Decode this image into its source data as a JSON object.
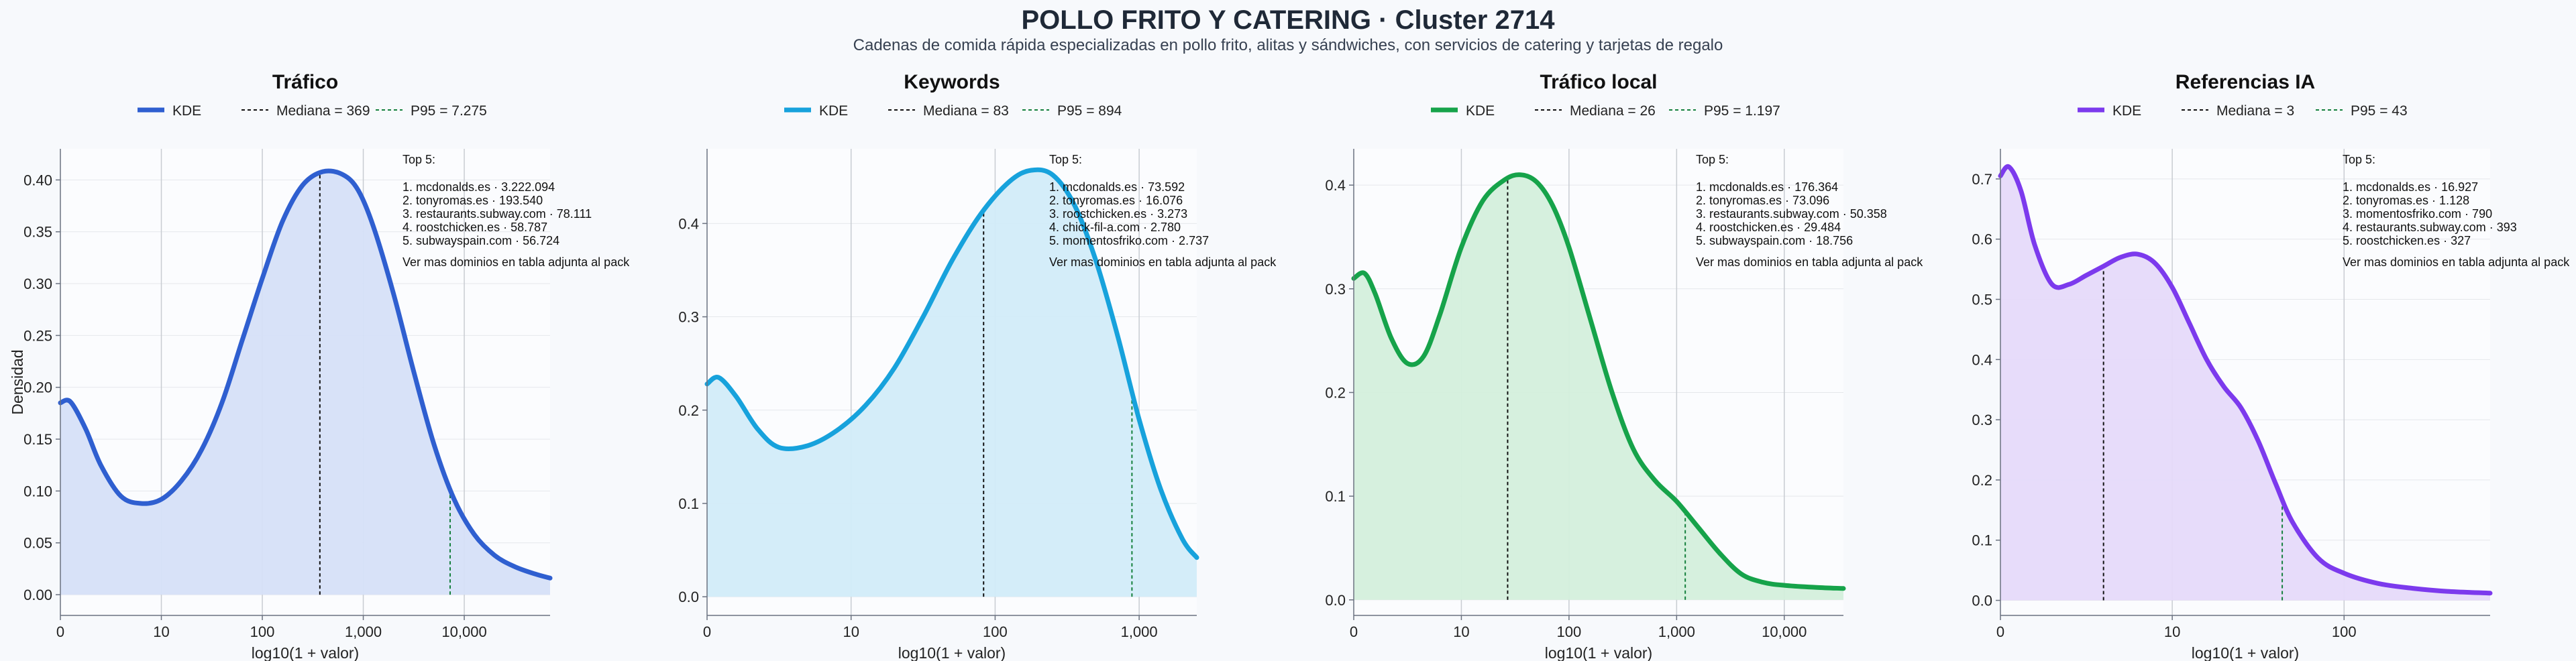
{
  "title": "POLLO FRITO Y CATERING · Cluster 2714",
  "subtitle": "Cadenas de comida rápida especializadas en pollo frito, alitas y sándwiches, con servicios de catering y tarjetas de regalo",
  "chart_data": [
    {
      "type": "area",
      "title": "Tráfico",
      "xlabel": "log10(1 + valor)",
      "ylabel": "Densidad",
      "color": "#2f5fd0",
      "fill": "#d6e0f8",
      "xlim": [
        0,
        4.85
      ],
      "ylim": [
        -0.02,
        0.43
      ],
      "x_ticks": [
        0,
        1,
        2,
        3,
        4
      ],
      "x_tick_labels": [
        "0",
        "10",
        "100",
        "1,000",
        "10,000"
      ],
      "y_ticks": [
        0.0,
        0.05,
        0.1,
        0.15,
        0.2,
        0.25,
        0.3,
        0.35,
        0.4
      ],
      "y_tick_labels": [
        "0.00",
        "0.05",
        "0.10",
        "0.15",
        "0.20",
        "0.25",
        "0.30",
        "0.35",
        "0.40"
      ],
      "legend": [
        "KDE",
        "Mediana = 369",
        "P95 = 7.275"
      ],
      "median_x": 2.57,
      "p95_x": 3.86,
      "x": [
        0,
        0.1,
        0.25,
        0.4,
        0.6,
        0.8,
        1.0,
        1.2,
        1.4,
        1.6,
        1.8,
        2.0,
        2.2,
        2.4,
        2.6,
        2.8,
        2.95,
        3.1,
        3.3,
        3.5,
        3.7,
        3.9,
        4.1,
        4.3,
        4.5,
        4.7,
        4.85
      ],
      "y": [
        0.185,
        0.186,
        0.16,
        0.125,
        0.095,
        0.088,
        0.092,
        0.11,
        0.14,
        0.185,
        0.245,
        0.305,
        0.36,
        0.395,
        0.408,
        0.405,
        0.39,
        0.355,
        0.29,
        0.215,
        0.145,
        0.092,
        0.058,
        0.038,
        0.027,
        0.02,
        0.016
      ],
      "top5_title": "Top 5:",
      "top5": [
        "1. mcdonalds.es · 3.222.094",
        "2. tonyromas.es · 193.540",
        "3. restaurants.subway.com · 78.111",
        "4. roostchicken.es · 58.787",
        "5. subwayspain.com · 56.724"
      ],
      "note": "Ver mas dominios en tabla adjunta al pack"
    },
    {
      "type": "area",
      "title": "Keywords",
      "xlabel": "log10(1 + valor)",
      "ylabel": "",
      "color": "#17a2dc",
      "fill": "#d2ecf9",
      "xlim": [
        0,
        3.4
      ],
      "ylim": [
        -0.02,
        0.48
      ],
      "x_ticks": [
        0,
        1,
        2,
        3
      ],
      "x_tick_labels": [
        "0",
        "10",
        "100",
        "1,000"
      ],
      "y_ticks": [
        0.0,
        0.1,
        0.2,
        0.3,
        0.4
      ],
      "y_tick_labels": [
        "0.0",
        "0.1",
        "0.2",
        "0.3",
        "0.4"
      ],
      "legend": [
        "KDE",
        "Mediana = 83",
        "P95 = 894"
      ],
      "median_x": 1.92,
      "p95_x": 2.95,
      "x": [
        0,
        0.08,
        0.2,
        0.35,
        0.5,
        0.7,
        0.9,
        1.1,
        1.3,
        1.5,
        1.7,
        1.9,
        2.1,
        2.25,
        2.4,
        2.55,
        2.7,
        2.85,
        3.0,
        3.15,
        3.3,
        3.4
      ],
      "y": [
        0.228,
        0.235,
        0.215,
        0.18,
        0.16,
        0.162,
        0.178,
        0.205,
        0.245,
        0.3,
        0.36,
        0.41,
        0.445,
        0.457,
        0.452,
        0.42,
        0.36,
        0.28,
        0.19,
        0.115,
        0.062,
        0.042
      ],
      "top5_title": "Top 5:",
      "top5": [
        "1. mcdonalds.es · 73.592",
        "2. tonyromas.es · 16.076",
        "3. roostchicken.es · 3.273",
        "4. chick-fil-a.com · 2.780",
        "5. momentosfriko.com · 2.737"
      ],
      "note": "Ver mas dominios en tabla adjunta al pack"
    },
    {
      "type": "area",
      "title": "Tráfico local",
      "xlabel": "log10(1 + valor)",
      "ylabel": "",
      "color": "#16a34a",
      "fill": "#d4efdc",
      "xlim": [
        0,
        4.55
      ],
      "ylim": [
        -0.015,
        0.435
      ],
      "x_ticks": [
        0,
        1,
        2,
        3,
        4
      ],
      "x_tick_labels": [
        "0",
        "10",
        "100",
        "1,000",
        "10,000"
      ],
      "y_ticks": [
        0.0,
        0.1,
        0.2,
        0.3,
        0.4
      ],
      "y_tick_labels": [
        "0.0",
        "0.1",
        "0.2",
        "0.3",
        "0.4"
      ],
      "legend": [
        "KDE",
        "Mediana = 26",
        "P95 = 1.197"
      ],
      "median_x": 1.43,
      "p95_x": 3.08,
      "x": [
        0,
        0.1,
        0.2,
        0.35,
        0.5,
        0.65,
        0.8,
        1.0,
        1.2,
        1.4,
        1.55,
        1.7,
        1.85,
        2.0,
        2.2,
        2.4,
        2.6,
        2.8,
        3.0,
        3.2,
        3.4,
        3.6,
        3.8,
        4.0,
        4.3,
        4.55
      ],
      "y": [
        0.31,
        0.315,
        0.295,
        0.252,
        0.228,
        0.235,
        0.275,
        0.34,
        0.385,
        0.405,
        0.41,
        0.403,
        0.38,
        0.34,
        0.27,
        0.2,
        0.145,
        0.115,
        0.095,
        0.07,
        0.045,
        0.025,
        0.017,
        0.014,
        0.012,
        0.011
      ],
      "top5_title": "Top 5:",
      "top5": [
        "1. mcdonalds.es · 176.364",
        "2. tonyromas.es · 73.096",
        "3. restaurants.subway.com · 50.358",
        "4. roostchicken.es · 29.484",
        "5. subwayspain.com · 18.756"
      ],
      "note": "Ver mas dominios en tabla adjunta al pack"
    },
    {
      "type": "area",
      "title": "Referencias IA",
      "xlabel": "log10(1 + valor)",
      "ylabel": "",
      "color": "#7c3aed",
      "fill": "#e6dafa",
      "xlim": [
        0,
        2.85
      ],
      "ylim": [
        -0.025,
        0.75
      ],
      "x_ticks": [
        0,
        1,
        2
      ],
      "x_tick_labels": [
        "0",
        "10",
        "100"
      ],
      "y_ticks": [
        0.0,
        0.1,
        0.2,
        0.3,
        0.4,
        0.5,
        0.6,
        0.7
      ],
      "y_tick_labels": [
        "0.0",
        "0.1",
        "0.2",
        "0.3",
        "0.4",
        "0.5",
        "0.6",
        "0.7"
      ],
      "legend": [
        "KDE",
        "Mediana = 3",
        "P95 = 43"
      ],
      "median_x": 0.6,
      "p95_x": 1.64,
      "x": [
        0,
        0.05,
        0.12,
        0.2,
        0.3,
        0.4,
        0.5,
        0.6,
        0.7,
        0.8,
        0.9,
        1.0,
        1.1,
        1.2,
        1.3,
        1.4,
        1.5,
        1.6,
        1.7,
        1.85,
        2.0,
        2.2,
        2.4,
        2.6,
        2.85
      ],
      "y": [
        0.705,
        0.72,
        0.68,
        0.59,
        0.525,
        0.525,
        0.54,
        0.555,
        0.57,
        0.575,
        0.56,
        0.52,
        0.46,
        0.4,
        0.355,
        0.32,
        0.265,
        0.195,
        0.13,
        0.07,
        0.045,
        0.028,
        0.02,
        0.015,
        0.012
      ],
      "top5_title": "Top 5:",
      "top5": [
        "1. mcdonalds.es · 16.927",
        "2. tonyromas.es · 1.128",
        "3. momentosfriko.com · 790",
        "4. restaurants.subway.com · 393",
        "5. roostchicken.es · 327"
      ],
      "note": "Ver mas dominios en tabla adjunta al pack"
    }
  ]
}
